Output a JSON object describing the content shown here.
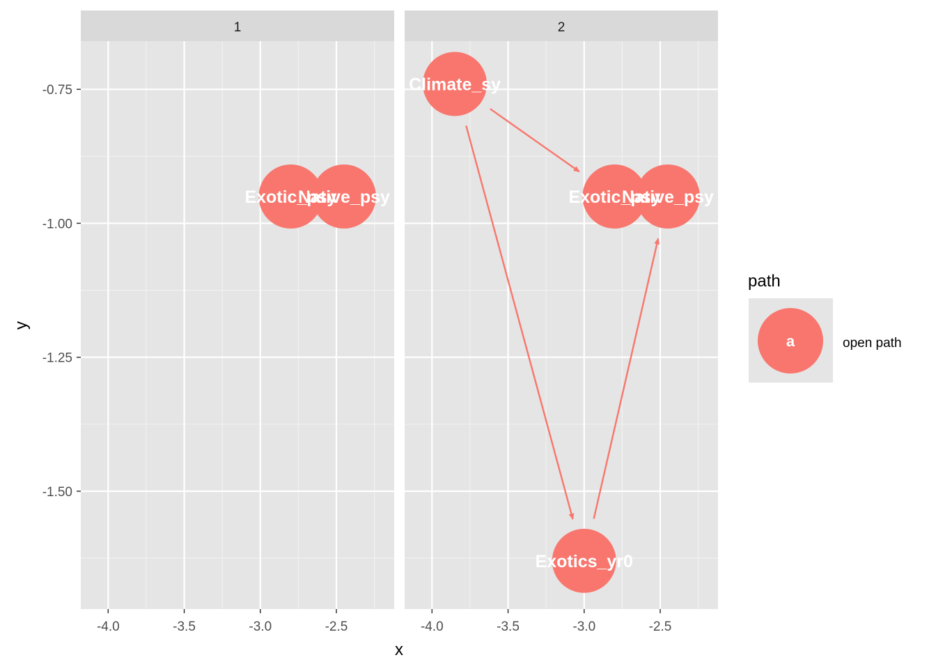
{
  "chart_data": {
    "type": "scatter",
    "xlabel": "x",
    "ylabel": "y",
    "xlim": [
      -4.18,
      -2.12
    ],
    "ylim": [
      -1.72,
      -0.66
    ],
    "x_ticks": [
      -4.0,
      -3.5,
      -3.0,
      -2.5
    ],
    "x_tick_labels": [
      "-4.0",
      "-3.5",
      "-3.0",
      "-2.5"
    ],
    "y_ticks": [
      -0.75,
      -1.0,
      -1.25,
      -1.5
    ],
    "y_tick_labels": [
      "-0.75",
      "-1.00",
      "-1.25",
      "-1.50"
    ],
    "grid": true,
    "node_color": "#F8766D",
    "panel_background": "#E5E5E5",
    "strip_background": "#D9D9D9",
    "legend": {
      "title": "path",
      "key_label": "a",
      "entry": "open path",
      "placement": "right"
    },
    "panels": [
      {
        "strip": "1",
        "nodes": [
          {
            "name": "Exotic_psy",
            "x": -2.8,
            "y": -0.95
          },
          {
            "name": "Native_psy",
            "x": -2.45,
            "y": -0.95
          }
        ],
        "edges": []
      },
      {
        "strip": "2",
        "nodes": [
          {
            "name": "Climate_sy",
            "x": -3.85,
            "y": -0.74
          },
          {
            "name": "Exotic_psy",
            "x": -2.8,
            "y": -0.95
          },
          {
            "name": "Native_psy",
            "x": -2.45,
            "y": -0.95
          },
          {
            "name": "Exotics_yr0",
            "x": -3.0,
            "y": -1.63
          }
        ],
        "edges": [
          {
            "from": "Climate_sy",
            "to": "Exotic_psy"
          },
          {
            "from": "Climate_sy",
            "to": "Exotics_yr0"
          },
          {
            "from": "Exotics_yr0",
            "to": "Native_psy"
          }
        ]
      }
    ]
  }
}
